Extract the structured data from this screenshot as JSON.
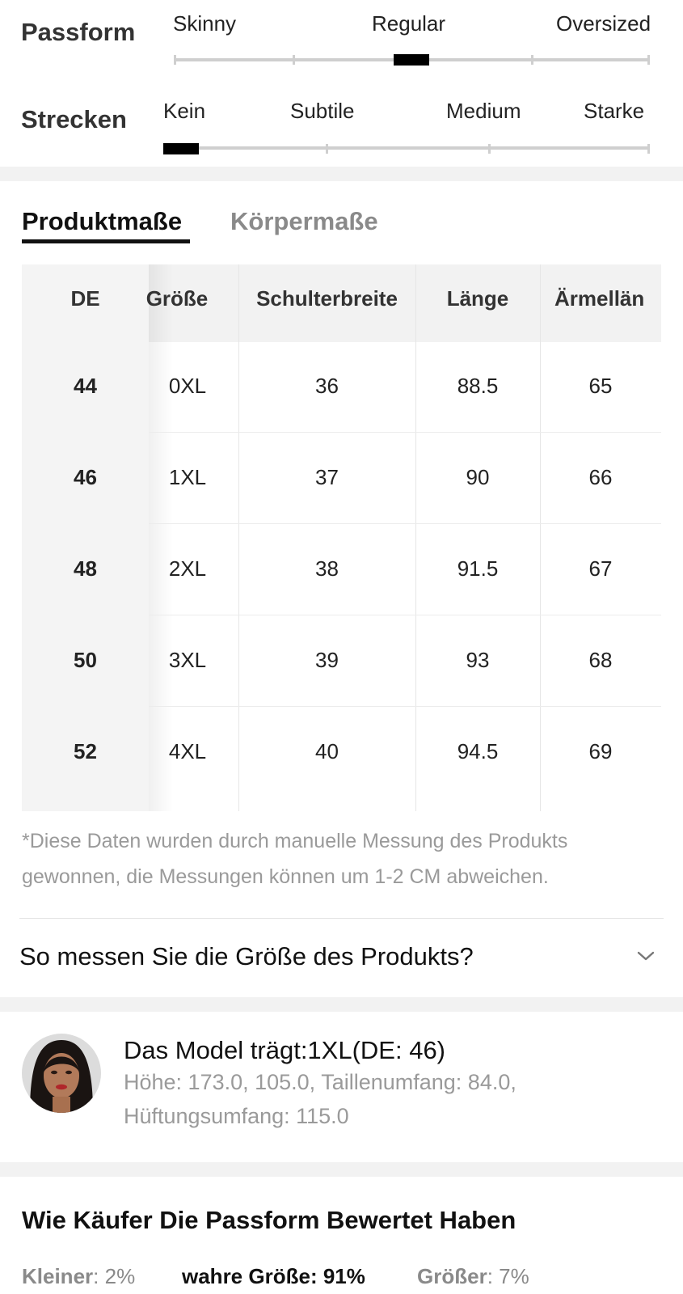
{
  "fit": {
    "passform": {
      "title": "Passform",
      "options": [
        "Skinny",
        "Regular",
        "Oversized"
      ],
      "selected_index": 1
    },
    "strecken": {
      "title": "Strecken",
      "options": [
        "Kein",
        "Subtile",
        "Medium",
        "Starke"
      ],
      "selected_index": 0
    }
  },
  "tabs": [
    {
      "label": "Produktmaße",
      "active": true
    },
    {
      "label": "Körpermaße",
      "active": false
    }
  ],
  "size_table": {
    "headers": [
      "DE",
      "Größe",
      "Schulterbreite",
      "Länge",
      "Ärmellän"
    ],
    "rows": [
      [
        "44",
        "0XL",
        "36",
        "88.5",
        "65"
      ],
      [
        "46",
        "1XL",
        "37",
        "90",
        "66"
      ],
      [
        "48",
        "2XL",
        "38",
        "91.5",
        "67"
      ],
      [
        "50",
        "3XL",
        "39",
        "93",
        "68"
      ],
      [
        "52",
        "4XL",
        "40",
        "94.5",
        "69"
      ]
    ]
  },
  "note": {
    "line1": "*Diese Daten wurden durch manuelle Messung des Produkts",
    "line2": "gewonnen, die Messungen können um 1-2 CM abweichen."
  },
  "how_to_measure": {
    "label": "So messen Sie die Größe des Produkts?",
    "icon": "chevron-down-icon"
  },
  "model": {
    "title": "Das Model trägt:1XL(DE: 46)",
    "line1": "Höhe: 173.0,   105.0,  Taillenumfang: 84.0,",
    "line2": "Hüftungsumfang: 115.0"
  },
  "reviews": {
    "title": "Wie Käufer Die Passform Bewertet Haben",
    "smaller_label": "Kleiner",
    "smaller_value": ": 2%",
    "true_label": "wahre Größe",
    "true_value": ": 91%",
    "larger_label": "Größer",
    "larger_value": ": 7%"
  },
  "colors": {
    "track": "#cfcfcf",
    "knob": "#000000",
    "band": "#f2f2f2",
    "muted_text": "#9a9a9a"
  }
}
